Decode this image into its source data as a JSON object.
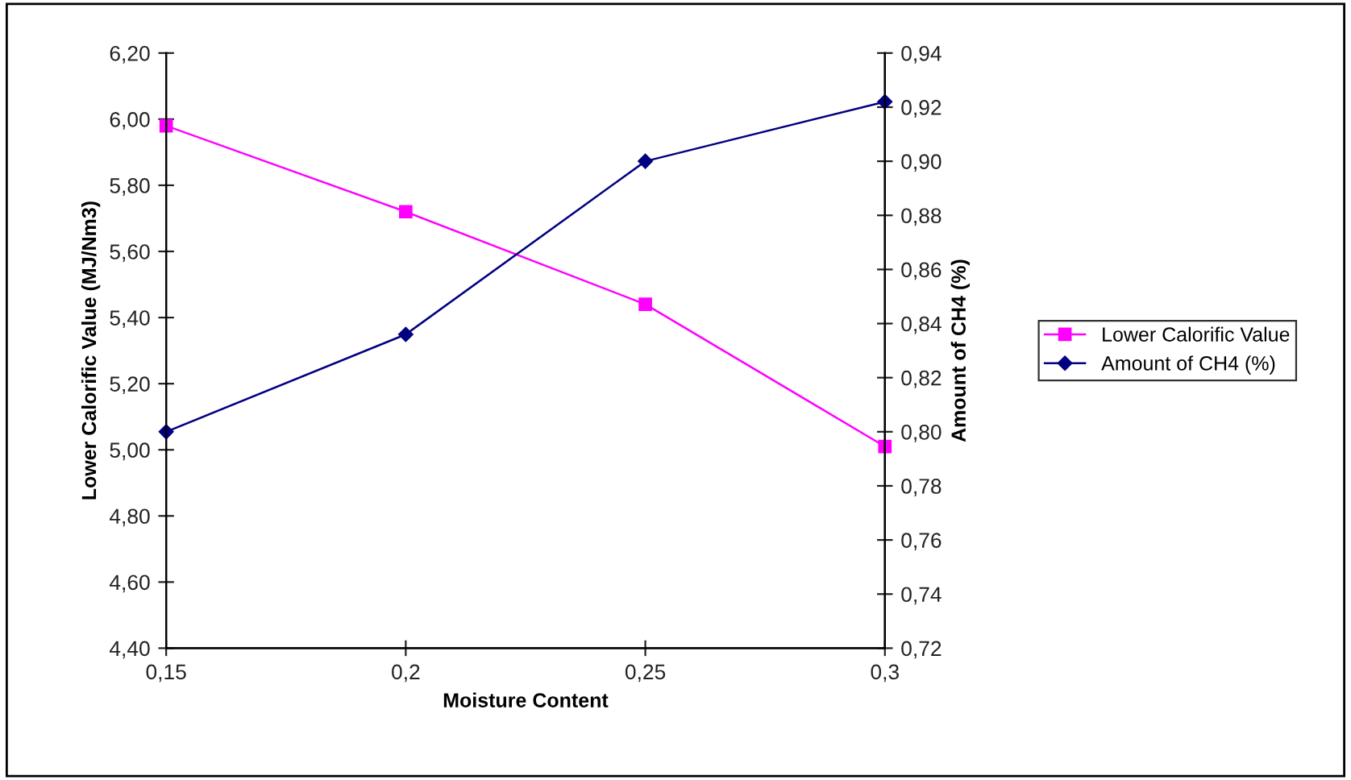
{
  "chart_data": {
    "type": "line",
    "xlabel": "Moisture Content",
    "ylabel": "Lower Calorific Value (MJ/Nm3)",
    "y2label": "Amount of CH4 (%)",
    "x": [
      0.15,
      0.2,
      0.25,
      0.3
    ],
    "series": [
      {
        "name": "Lower Calorific Value",
        "color": "#ff00ff",
        "marker": "square",
        "values": [
          5.98,
          5.72,
          5.44,
          5.01
        ]
      },
      {
        "name": "Amount of CH4 (%)",
        "color": "#000080",
        "marker": "diamond",
        "axis": "y2",
        "values": [
          0.8,
          0.836,
          0.9,
          0.922
        ]
      }
    ],
    "xlim": [
      0.15,
      0.3
    ],
    "xticks": [
      {
        "value": 0.15,
        "label": "0,15"
      },
      {
        "value": 0.2,
        "label": "0,2"
      },
      {
        "value": 0.25,
        "label": "0,25"
      },
      {
        "value": 0.3,
        "label": "0,3"
      }
    ],
    "ylim": [
      4.4,
      6.2
    ],
    "yticks": [
      {
        "value": 4.4,
        "label": "4,40"
      },
      {
        "value": 4.6,
        "label": "4,60"
      },
      {
        "value": 4.8,
        "label": "4,80"
      },
      {
        "value": 5.0,
        "label": "5,00"
      },
      {
        "value": 5.2,
        "label": "5,20"
      },
      {
        "value": 5.4,
        "label": "5,40"
      },
      {
        "value": 5.6,
        "label": "5,60"
      },
      {
        "value": 5.8,
        "label": "5,80"
      },
      {
        "value": 6.0,
        "label": "6,00"
      },
      {
        "value": 6.2,
        "label": "6,20"
      }
    ],
    "y2lim": [
      0.72,
      0.94
    ],
    "y2ticks": [
      {
        "value": 0.72,
        "label": "0,72"
      },
      {
        "value": 0.74,
        "label": "0,74"
      },
      {
        "value": 0.76,
        "label": "0,76"
      },
      {
        "value": 0.78,
        "label": "0,78"
      },
      {
        "value": 0.8,
        "label": "0,80"
      },
      {
        "value": 0.82,
        "label": "0,82"
      },
      {
        "value": 0.84,
        "label": "0,84"
      },
      {
        "value": 0.86,
        "label": "0,86"
      },
      {
        "value": 0.88,
        "label": "0,88"
      },
      {
        "value": 0.9,
        "label": "0,90"
      },
      {
        "value": 0.92,
        "label": "0,92"
      },
      {
        "value": 0.94,
        "label": "0,94"
      }
    ],
    "grid": false,
    "legend": "right",
    "line_style": "solid"
  }
}
